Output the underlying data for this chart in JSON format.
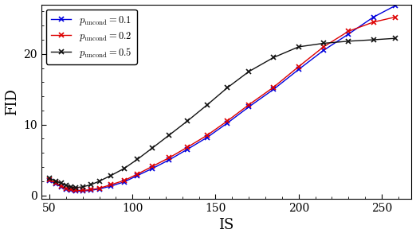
{
  "title": "",
  "xlabel": "IS",
  "ylabel": "FID",
  "xlim": [
    45,
    268
  ],
  "ylim": [
    -0.5,
    27
  ],
  "xticks": [
    50,
    100,
    150,
    200,
    250
  ],
  "yticks": [
    0,
    10,
    20
  ],
  "series": [
    {
      "label": "$p_\\mathrm{uncond} = 0.1$",
      "color": "#0000dd",
      "IS": [
        50,
        54,
        57,
        60,
        63,
        66,
        70,
        75,
        80,
        87,
        95,
        103,
        112,
        122,
        133,
        145,
        157,
        170,
        185,
        200,
        215,
        230,
        245,
        258
      ],
      "FID": [
        2.1,
        1.6,
        1.2,
        0.9,
        0.7,
        0.6,
        0.6,
        0.7,
        0.9,
        1.3,
        1.9,
        2.8,
        3.8,
        5.0,
        6.5,
        8.2,
        10.2,
        12.5,
        15.0,
        17.8,
        20.5,
        22.8,
        25.2,
        26.8
      ]
    },
    {
      "label": "$p_\\mathrm{uncond} = 0.2$",
      "color": "#dd0000",
      "IS": [
        50,
        54,
        57,
        60,
        63,
        66,
        70,
        75,
        80,
        87,
        95,
        103,
        112,
        122,
        133,
        145,
        157,
        170,
        185,
        200,
        215,
        230,
        245,
        258
      ],
      "FID": [
        2.2,
        1.7,
        1.3,
        1.0,
        0.8,
        0.7,
        0.7,
        0.8,
        1.0,
        1.5,
        2.1,
        3.0,
        4.1,
        5.3,
        6.8,
        8.5,
        10.5,
        12.8,
        15.3,
        18.2,
        21.0,
        23.2,
        24.5,
        25.2
      ]
    },
    {
      "label": "$p_\\mathrm{uncond} = 0.5$",
      "color": "#111111",
      "IS": [
        50,
        54,
        57,
        60,
        63,
        66,
        70,
        75,
        80,
        87,
        95,
        103,
        112,
        122,
        133,
        145,
        157,
        170,
        185,
        200,
        215,
        230,
        245,
        258
      ],
      "FID": [
        2.4,
        2.0,
        1.7,
        1.4,
        1.2,
        1.1,
        1.2,
        1.5,
        2.0,
        2.8,
        3.8,
        5.1,
        6.7,
        8.5,
        10.5,
        12.8,
        15.2,
        17.5,
        19.5,
        21.0,
        21.5,
        21.8,
        22.0,
        22.2
      ]
    }
  ],
  "legend_loc": "upper left",
  "fontsize_label": 13,
  "fontsize_tick": 10,
  "fontsize_legend": 9,
  "marker": "x",
  "markersize": 4,
  "linewidth": 1.0
}
